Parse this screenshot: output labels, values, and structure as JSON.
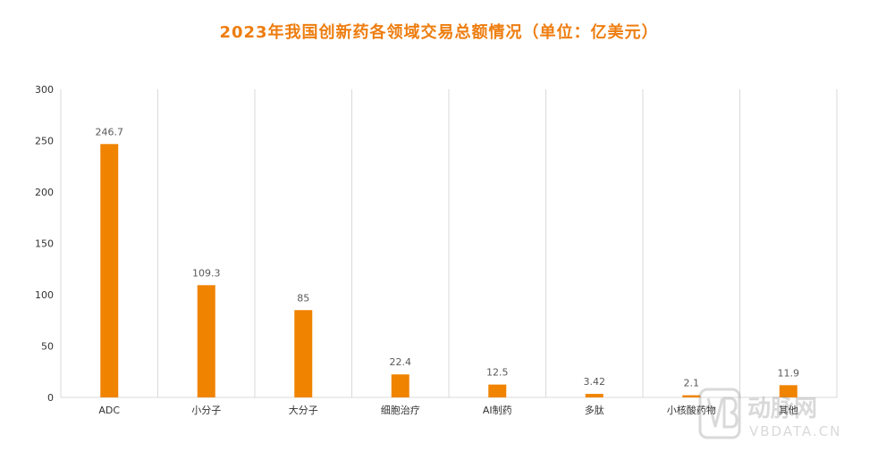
{
  "chart_data": {
    "type": "bar",
    "title": "2023年我国创新药各领域交易总额情况（单位：亿美元）",
    "categories": [
      "ADC",
      "小分子",
      "大分子",
      "细胞治疗",
      "AI制药",
      "多肽",
      "小核酸药物",
      "其他"
    ],
    "values": [
      246.7,
      109.3,
      85,
      22.4,
      12.5,
      3.42,
      2.1,
      11.9
    ],
    "value_labels": [
      "246.7",
      "109.3",
      "85",
      "22.4",
      "12.5",
      "3.42",
      "2.1",
      "11.9"
    ],
    "ylim": [
      0,
      300
    ],
    "yticks": [
      0,
      50,
      100,
      150,
      200,
      250,
      300
    ],
    "grid": "vertical-category",
    "bar_color": "#F08300"
  },
  "watermark": {
    "brand": "动脉网",
    "site": "VBDATA.CN"
  }
}
